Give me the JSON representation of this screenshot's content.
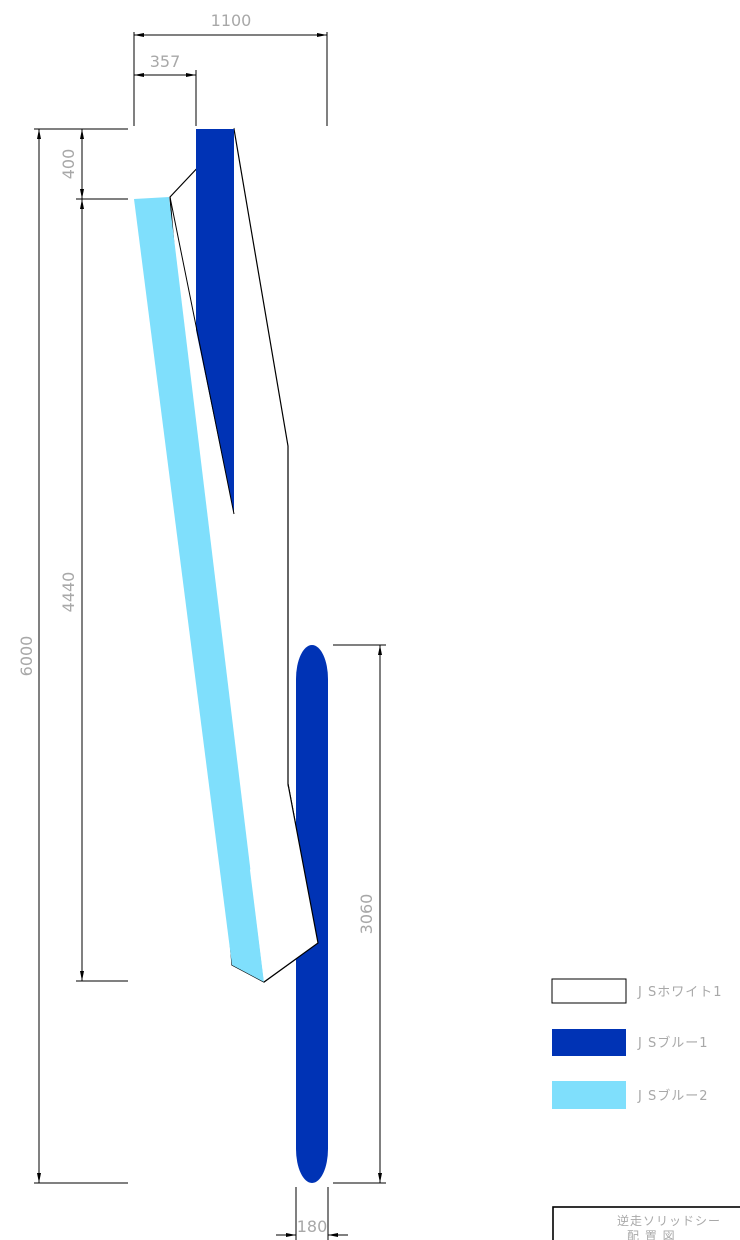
{
  "dimensions": {
    "total_width": "1100",
    "offset_left": "357",
    "total_height": "6000",
    "top_gap": "400",
    "light_blue_height": "4440",
    "lower_blue_height": "3060",
    "lower_blue_width": "180"
  },
  "legend": [
    {
      "label": "J Sホワイト1",
      "color": "#ffffff"
    },
    {
      "label": "J Sブルー1",
      "color": "#0033b5"
    },
    {
      "label": "J Sブルー2",
      "color": "#7fdffc"
    }
  ],
  "title_block": {
    "line1": "逆走ソリッドシー",
    "line2": "配 置 図"
  },
  "colors": {
    "white": "#ffffff",
    "blue1": "#0033b5",
    "blue2": "#7fdffc"
  }
}
